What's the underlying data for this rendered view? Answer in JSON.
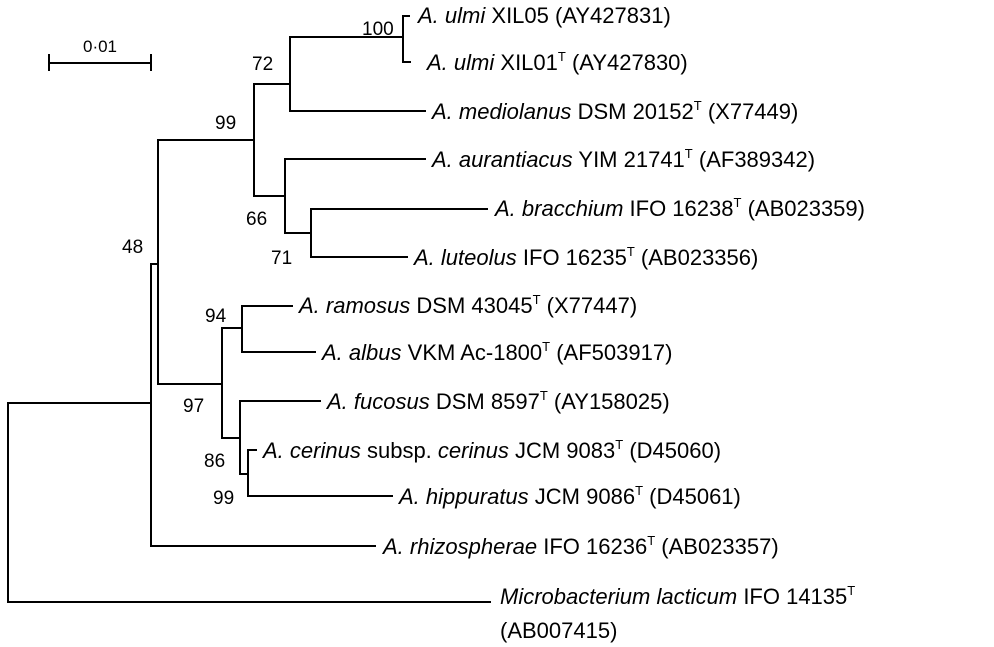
{
  "scale_bar": {
    "label": "0·01"
  },
  "taxa": [
    {
      "genus": "A.",
      "species": "ulmi",
      "strain": "XIL05",
      "type_strain": false,
      "accession": "(AY427831)"
    },
    {
      "genus": "A.",
      "species": "ulmi",
      "strain": "XIL01",
      "type_strain": true,
      "accession": "(AY427830)"
    },
    {
      "genus": "A.",
      "species": "mediolanus",
      "strain": "DSM 20152",
      "type_strain": true,
      "accession": "(X77449)"
    },
    {
      "genus": "A.",
      "species": "aurantiacus",
      "strain": "YIM 21741",
      "type_strain": true,
      "accession": "(AF389342)"
    },
    {
      "genus": "A.",
      "species": "bracchium",
      "strain": "IFO 16238",
      "type_strain": true,
      "accession": "(AB023359)"
    },
    {
      "genus": "A.",
      "species": "luteolus",
      "strain": "IFO 16235",
      "type_strain": true,
      "accession": "(AB023356)"
    },
    {
      "genus": "A.",
      "species": "ramosus",
      "strain": "DSM 43045",
      "type_strain": true,
      "accession": "(X77447)"
    },
    {
      "genus": "A.",
      "species": "albus",
      "strain": "VKM Ac-1800",
      "type_strain": true,
      "accession": "(AF503917)"
    },
    {
      "genus": "A.",
      "species": "fucosus",
      "strain": "DSM 8597",
      "type_strain": true,
      "accession": "(AY158025)"
    },
    {
      "genus": "A.",
      "species": "cerinus",
      "subsp_word": "subsp.",
      "subsp_name": "cerinus",
      "strain": "JCM 9083",
      "type_strain": true,
      "accession": "(D45060)"
    },
    {
      "genus": "A.",
      "species": "hippuratus",
      "strain": "JCM 9086",
      "type_strain": true,
      "accession": "(D45061)"
    },
    {
      "genus": "A.",
      "species": "rhizospherae",
      "strain": "IFO 16236",
      "type_strain": true,
      "accession": "(AB023357)"
    },
    {
      "genus": "Microbacterium",
      "species": "lacticum",
      "strain": "IFO 14135",
      "type_strain": true,
      "accession": "(AB007415)"
    }
  ],
  "type_superscript": "T",
  "bootstrap_values": [
    "100",
    "72",
    "99",
    "66",
    "71",
    "48",
    "94",
    "97",
    "86",
    "99"
  ]
}
